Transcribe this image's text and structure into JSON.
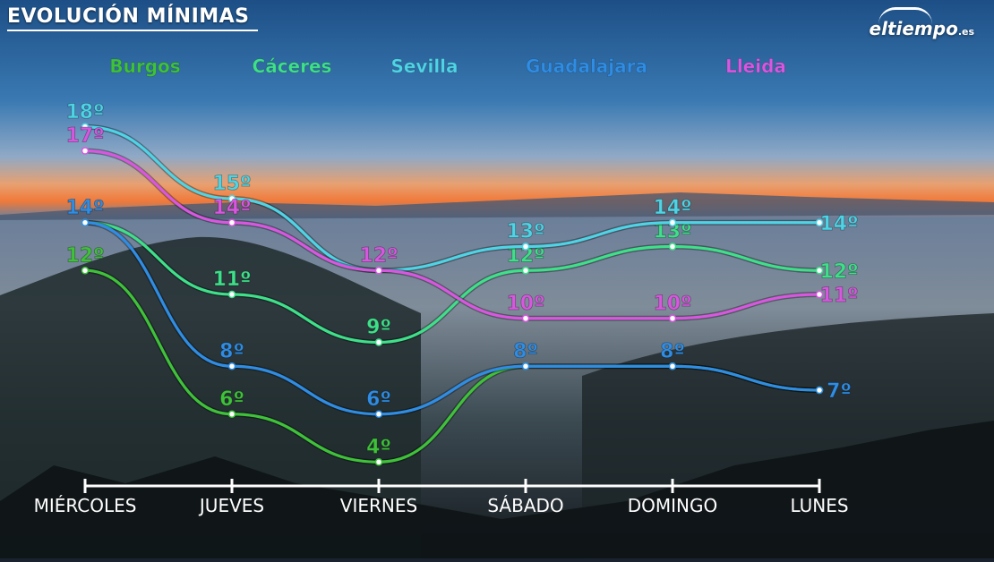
{
  "header": {
    "title": "EVOLUCIÓN MÍNIMAS"
  },
  "logo": {
    "name": "eltiempo",
    "suffix": ".es"
  },
  "chart_data": {
    "type": "line",
    "title": "EVOLUCIÓN MÍNIMAS",
    "categories": [
      "MIÉRCOLES",
      "JUEVES",
      "VIERNES",
      "SÁBADO",
      "DOMINGO",
      "LUNES"
    ],
    "unit": "º",
    "ylim": [
      3,
      19
    ],
    "legend_position": "top",
    "series": [
      {
        "name": "Burgos",
        "color": "#3fc23a",
        "values": [
          12,
          6,
          4,
          8,
          8,
          7
        ]
      },
      {
        "name": "Cáceres",
        "color": "#3fe08a",
        "values": [
          14,
          11,
          9,
          12,
          13,
          12
        ]
      },
      {
        "name": "Sevilla",
        "color": "#4fd4e6",
        "values": [
          18,
          15,
          12,
          13,
          14,
          14
        ]
      },
      {
        "name": "Guadalajara",
        "color": "#2f8de4",
        "values": [
          14,
          8,
          6,
          8,
          8,
          7
        ]
      },
      {
        "name": "Lleida",
        "color": "#d957e0",
        "values": [
          17,
          14,
          12,
          10,
          10,
          11
        ]
      }
    ],
    "data_labels": {
      "Burgos": [
        "12º",
        "6º",
        "4º",
        "",
        "",
        ""
      ],
      "Cáceres": [
        "",
        "11º",
        "9º",
        "12º",
        "13º",
        "12º"
      ],
      "Sevilla": [
        "18º",
        "15º",
        "",
        "13º",
        "14º",
        "14º"
      ],
      "Guadalajara": [
        "14º",
        "8º",
        "6º",
        "8º",
        "8º",
        "7º"
      ],
      "Lleida": [
        "17º",
        "14º",
        "12º",
        "10º",
        "10º",
        "11º"
      ]
    }
  }
}
